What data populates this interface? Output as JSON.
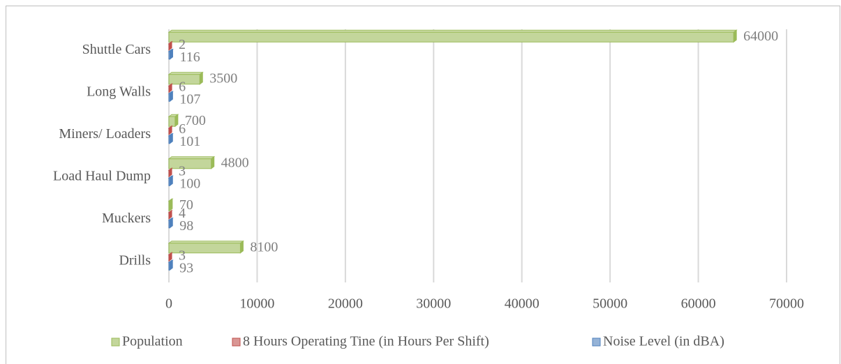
{
  "chart_data": {
    "type": "bar",
    "orientation": "horizontal",
    "categories": [
      "Drills",
      "Muckers",
      "Load Haul Dump",
      "Miners/ Loaders",
      "Long Walls",
      "Shuttle Cars"
    ],
    "series": [
      {
        "name": "Population",
        "color": "#9bbb59",
        "values": [
          8100,
          70,
          4800,
          700,
          3500,
          64000
        ]
      },
      {
        "name": "8 Hours Operating Tine (in Hours Per Shift)",
        "color": "#c0504d",
        "values": [
          3,
          4,
          3,
          6,
          6,
          2
        ]
      },
      {
        "name": "Noise Level (in dBA)",
        "color": "#4f81bd",
        "values": [
          93,
          98,
          100,
          101,
          107,
          116
        ]
      }
    ],
    "xlim": [
      0,
      70000
    ],
    "xticks": [
      0,
      10000,
      20000,
      30000,
      40000,
      50000,
      60000,
      70000
    ],
    "grid": true,
    "legend": "bottom"
  }
}
